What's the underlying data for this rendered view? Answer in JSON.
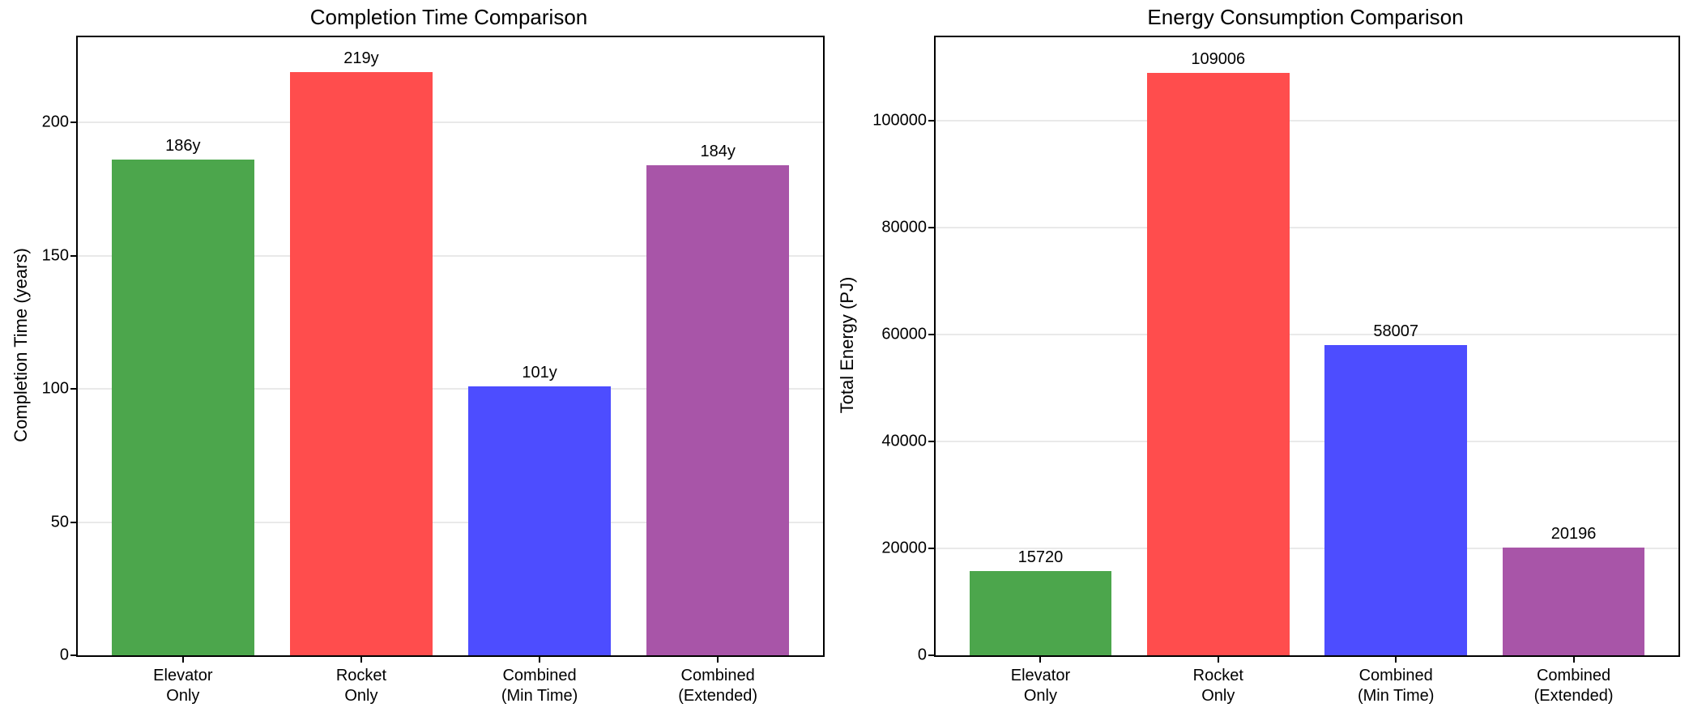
{
  "page": {
    "background": "#ffffff"
  },
  "style": {
    "grid_color": "#e9e9e9",
    "spine_color": "#000000",
    "text_color": "#000000"
  },
  "chart_data": [
    {
      "type": "bar",
      "title": "Completion Time Comparison",
      "ylabel": "Completion Time (years)",
      "xlabel": "",
      "categories": [
        "Elevator\nOnly",
        "Rocket\nOnly",
        "Combined\n(Min Time)",
        "Combined\n(Extended)"
      ],
      "values": [
        186,
        219,
        101,
        184
      ],
      "bar_labels": [
        "186y",
        "219y",
        "101y",
        "184y"
      ],
      "bar_colors": [
        "#4CA64C",
        "#FF4D4D",
        "#4D4DFF",
        "#A855A8"
      ],
      "color_names": [
        "green",
        "red",
        "blue",
        "purple"
      ],
      "yticks": [
        0,
        50,
        100,
        150,
        200
      ],
      "ylim": [
        0,
        232
      ],
      "grid": true,
      "legend": "none"
    },
    {
      "type": "bar",
      "title": "Energy Consumption Comparison",
      "ylabel": "Total Energy (PJ)",
      "xlabel": "",
      "categories": [
        "Elevator\nOnly",
        "Rocket\nOnly",
        "Combined\n(Min Time)",
        "Combined\n(Extended)"
      ],
      "values": [
        15720,
        109006,
        58007,
        20196
      ],
      "bar_labels": [
        "15720",
        "109006",
        "58007",
        "20196"
      ],
      "bar_colors": [
        "#4CA64C",
        "#FF4D4D",
        "#4D4DFF",
        "#A855A8"
      ],
      "color_names": [
        "green",
        "red",
        "blue",
        "purple"
      ],
      "yticks": [
        0,
        20000,
        40000,
        60000,
        80000,
        100000
      ],
      "ylim": [
        0,
        115600
      ],
      "grid": true,
      "legend": "none"
    }
  ]
}
